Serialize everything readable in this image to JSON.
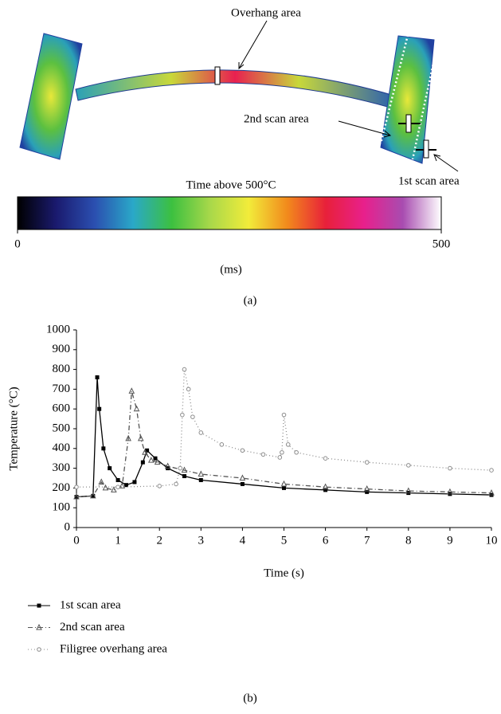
{
  "chart_data": [
    {
      "type": "colorbar",
      "title": "Time above 500°C",
      "x_label": "(ms)",
      "panel_label": "(a)",
      "annotations": [
        "Overhang area",
        "2nd scan area",
        "1st scan area"
      ],
      "xlim": [
        0,
        500
      ],
      "xticks": [
        0,
        500
      ],
      "colors": [
        "#000000",
        "#1a1a6e",
        "#2b4fb0",
        "#2aa8c8",
        "#3cc040",
        "#a8d84a",
        "#f2ec3a",
        "#f28a1c",
        "#e8203a",
        "#e8208c",
        "#a84cb0",
        "#ffffff"
      ]
    },
    {
      "type": "line",
      "x_label": "Time (s)",
      "y_label": "Temperature (°C)",
      "panel_label": "(b)",
      "xlim": [
        0,
        10
      ],
      "xticks": [
        0,
        1,
        2,
        3,
        4,
        5,
        6,
        7,
        8,
        9,
        10
      ],
      "ylim": [
        0,
        1000
      ],
      "yticks": [
        0,
        100,
        200,
        300,
        400,
        500,
        600,
        700,
        800,
        900,
        1000
      ],
      "series": [
        {
          "name": "1st scan area",
          "color": "#000000",
          "line_style": "solid",
          "marker": "square",
          "x": [
            0,
            0.4,
            0.5,
            0.55,
            0.65,
            0.8,
            1.0,
            1.2,
            1.4,
            1.6,
            1.7,
            1.9,
            2.2,
            2.6,
            3,
            4,
            5,
            6,
            7,
            8,
            9,
            10
          ],
          "values": [
            155,
            160,
            760,
            600,
            400,
            300,
            240,
            215,
            230,
            330,
            390,
            350,
            300,
            260,
            240,
            220,
            200,
            190,
            180,
            175,
            170,
            165
          ]
        },
        {
          "name": "2nd scan area",
          "color": "#555555",
          "line_style": "dashdot",
          "marker": "triangle",
          "x": [
            0,
            0.4,
            0.6,
            0.7,
            0.9,
            1.1,
            1.25,
            1.33,
            1.45,
            1.55,
            1.65,
            1.8,
            1.95,
            2.2,
            2.6,
            3,
            4,
            5,
            6,
            7,
            8,
            9,
            10
          ],
          "values": [
            155,
            160,
            230,
            200,
            190,
            210,
            450,
            690,
            600,
            450,
            380,
            340,
            330,
            310,
            290,
            270,
            250,
            220,
            205,
            195,
            185,
            180,
            175
          ]
        },
        {
          "name": "Filigree overhang area",
          "color": "#8c8c8c",
          "line_style": "dotted",
          "marker": "circle",
          "x": [
            0,
            1,
            2,
            2.4,
            2.5,
            2.55,
            2.6,
            2.7,
            2.8,
            3,
            3.5,
            4,
            4.5,
            4.9,
            4.95,
            5.0,
            5.1,
            5.3,
            6,
            7,
            8,
            9,
            10
          ],
          "values": [
            205,
            205,
            210,
            220,
            300,
            570,
            800,
            700,
            560,
            480,
            420,
            390,
            370,
            355,
            380,
            570,
            420,
            380,
            350,
            330,
            315,
            300,
            290
          ]
        }
      ]
    }
  ]
}
